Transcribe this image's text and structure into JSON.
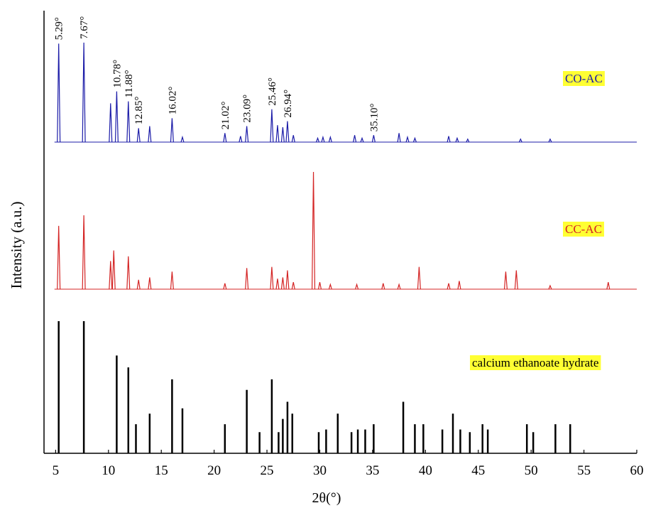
{
  "chart_data": {
    "type": "line",
    "xlabel": "2θ(°)",
    "ylabel": "Intensity (a.u.)",
    "xlim": [
      3.9,
      60
    ],
    "xticks": [
      5,
      10,
      15,
      20,
      25,
      30,
      35,
      40,
      45,
      50,
      55,
      60
    ],
    "series": [
      {
        "name": "CO-AC",
        "color": "#1c1ca8",
        "style": "profile",
        "x": [
          5.29,
          7.67,
          10.2,
          10.78,
          11.88,
          12.85,
          13.9,
          16.02,
          17,
          21.02,
          22.5,
          23.09,
          25.46,
          26,
          26.5,
          26.94,
          27.5,
          29.8,
          30.3,
          31,
          33.3,
          34,
          35.1,
          37.5,
          38.3,
          39,
          42.2,
          43,
          44,
          49,
          51.8
        ],
        "values": [
          99,
          100,
          39,
          51,
          41,
          14,
          16,
          24,
          5,
          9,
          6,
          16,
          33,
          17,
          15,
          21,
          7,
          4,
          5,
          5,
          7,
          4,
          7,
          9,
          5,
          4,
          6,
          4,
          3,
          3,
          3
        ]
      },
      {
        "name": "CC-AC",
        "color": "#d42424",
        "style": "profile",
        "x": [
          5.29,
          7.67,
          10.2,
          10.5,
          11.88,
          12.85,
          13.9,
          16.02,
          21.02,
          23.09,
          25.46,
          26,
          26.5,
          26.94,
          27.5,
          29.4,
          30,
          31,
          33.5,
          36,
          37.5,
          39.4,
          42.2,
          43.2,
          47.6,
          48.6,
          51.8,
          57.3
        ],
        "values": [
          54,
          63,
          24,
          33,
          28,
          8,
          10,
          15,
          5,
          18,
          19,
          9,
          10,
          16,
          6,
          100,
          6,
          4,
          4,
          5,
          4,
          19,
          5,
          7,
          15,
          16,
          3,
          6
        ]
      },
      {
        "name": "calcium ethanoate hydrate",
        "color": "#000000",
        "style": "stick",
        "x": [
          5.29,
          7.67,
          10.78,
          11.88,
          12.6,
          13.9,
          16.02,
          17,
          21.02,
          23.09,
          24.3,
          25.46,
          26.1,
          26.5,
          26.94,
          27.4,
          29.9,
          30.6,
          31.7,
          33,
          33.6,
          34.3,
          35.1,
          37.9,
          39,
          39.8,
          41.6,
          42.6,
          43.3,
          44.2,
          45.4,
          45.9,
          49.6,
          50.2,
          52.3,
          53.7
        ],
        "values": [
          100,
          100,
          74,
          65,
          22,
          30,
          56,
          34,
          22,
          48,
          16,
          56,
          16,
          26,
          39,
          30,
          16,
          18,
          30,
          16,
          18,
          18,
          22,
          39,
          22,
          22,
          18,
          30,
          18,
          16,
          22,
          18,
          22,
          16,
          22,
          22
        ]
      }
    ],
    "annotations": [
      {
        "x": 5.29,
        "text": "5.29°"
      },
      {
        "x": 7.67,
        "text": "7.67°"
      },
      {
        "x": 10.78,
        "text": "10.78°"
      },
      {
        "x": 11.88,
        "text": "11.88°"
      },
      {
        "x": 12.85,
        "text": "12.85°"
      },
      {
        "x": 16.02,
        "text": "16.02°"
      },
      {
        "x": 21.02,
        "text": "21.02°"
      },
      {
        "x": 23.09,
        "text": "23.09°"
      },
      {
        "x": 25.46,
        "text": "25.46°"
      },
      {
        "x": 26.94,
        "text": "26.94°"
      },
      {
        "x": 35.1,
        "text": "35.10°"
      }
    ]
  }
}
